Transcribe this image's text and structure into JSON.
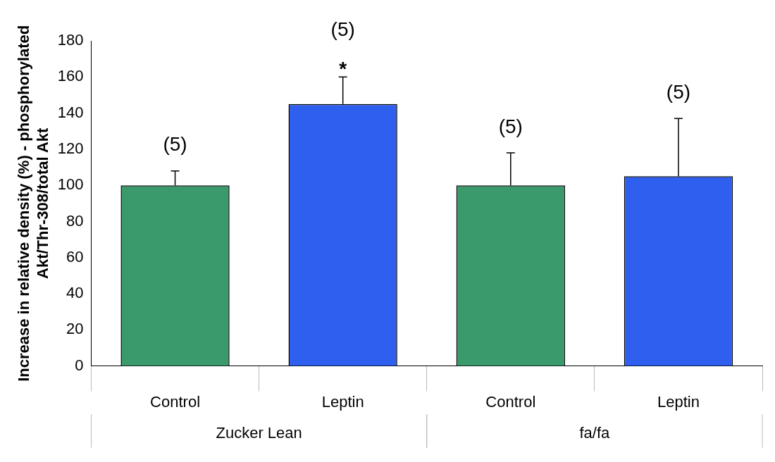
{
  "chart_data": {
    "type": "bar",
    "ylabel": "Increase in relative density (%) - phosphorylated\nAkt/Thr-308/total Akt",
    "categories": [
      "Control",
      "Leptin",
      "Control",
      "Leptin"
    ],
    "values": [
      100,
      145,
      100,
      105
    ],
    "colors": [
      "#3a9a6c",
      "#2f5fee",
      "#3a9a6c",
      "#2f5fee"
    ],
    "errors": [
      [
        100,
        108
      ],
      [
        145,
        160
      ],
      [
        100,
        118
      ],
      [
        105,
        137
      ]
    ],
    "annotations": [
      {
        "text": "*",
        "x": "Leptin",
        "y": 160
      },
      "(5)",
      "(5)",
      "(5)",
      "(5)",
      "Zucker Lean",
      "fa/fa"
    ],
    "ylim": [
      0,
      180
    ],
    "yticks": [
      0,
      20,
      40,
      60,
      80,
      100,
      120,
      140,
      160,
      180
    ],
    "grid": false,
    "legend": false
  }
}
